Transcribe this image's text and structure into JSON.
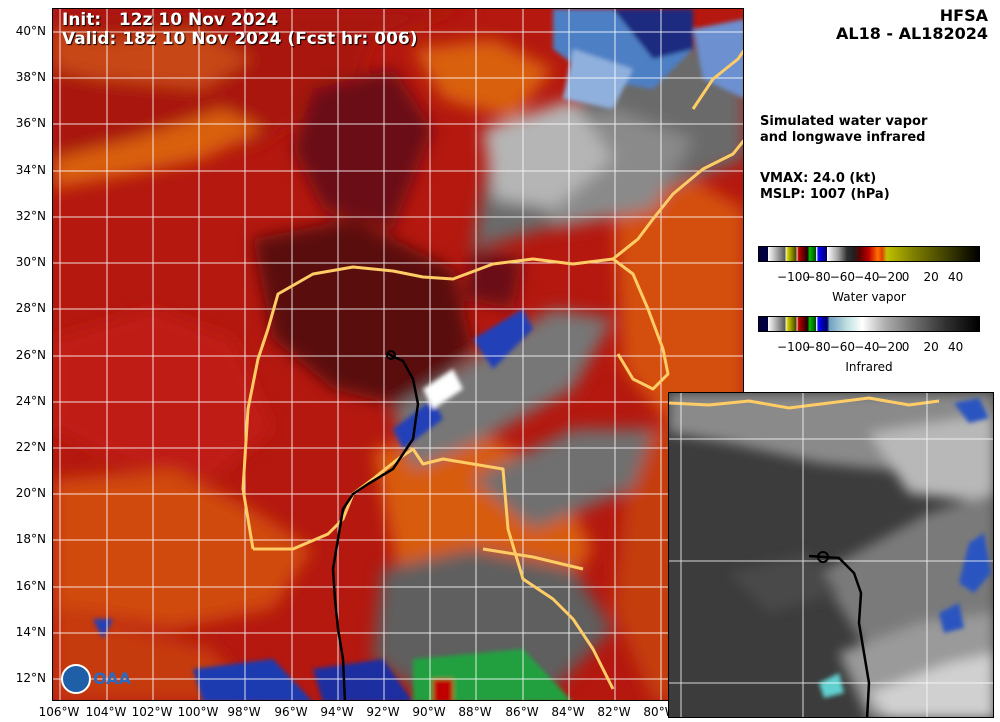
{
  "header": {
    "init": "Init:   12z 10 Nov 2024",
    "valid": "Valid: 18z 10 Nov 2024 (Fcst hr: 006)"
  },
  "side": {
    "model": "HFSA",
    "storm": "AL18 - AL182024",
    "desc_line1": "Simulated water vapor",
    "desc_line2": "and longwave infrared",
    "vmax": "VMAX:  24.0 (kt)",
    "mslp": "MSLP: 1007 (hPa)"
  },
  "colorbars": {
    "ticks": [
      "−100",
      "−80",
      "−60",
      "−40",
      "−20",
      "0",
      "20",
      "40"
    ],
    "wv_label": "Water vapor",
    "ir_label": "Infrared"
  },
  "axes": {
    "lat_labels": [
      "40°N",
      "38°N",
      "36°N",
      "34°N",
      "32°N",
      "30°N",
      "28°N",
      "26°N",
      "24°N",
      "22°N",
      "20°N",
      "18°N",
      "16°N",
      "14°N",
      "12°N"
    ],
    "lon_labels": [
      "106°W",
      "104°W",
      "102°W",
      "100°W",
      "98°W",
      "96°W",
      "94°W",
      "92°W",
      "90°W",
      "88°W",
      "86°W",
      "84°W",
      "82°W",
      "80°W"
    ]
  },
  "colors": {
    "coast": "#ffcc66",
    "track": "#000000",
    "wv_dark": "#5a0c10",
    "wv_red": "#c21a12",
    "wv_orange": "#d9600e",
    "ir_gray": "#555555"
  },
  "logo": {
    "text": "OAA",
    "icon": "noaa-logo-icon"
  }
}
